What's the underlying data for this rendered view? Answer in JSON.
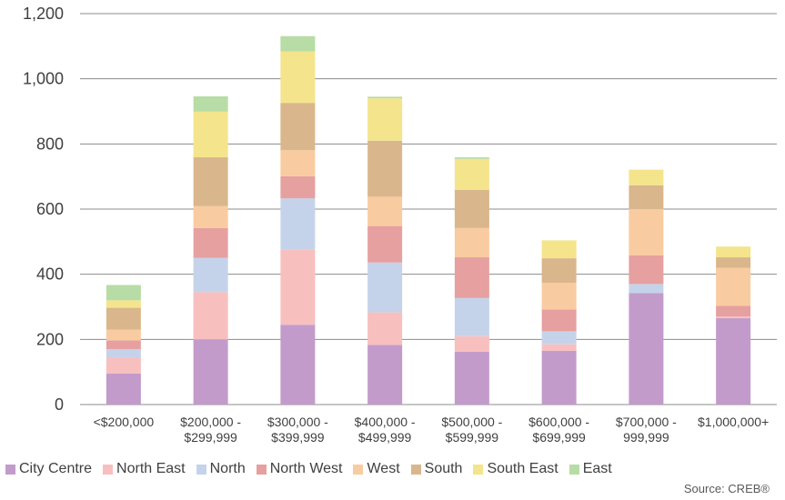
{
  "chart_data": {
    "type": "bar",
    "stacked": true,
    "categories": [
      [
        "<$200,000"
      ],
      [
        "$200,000 -",
        "$299,999"
      ],
      [
        "$300,000 -",
        "$399,999"
      ],
      [
        "$400,000 -",
        "$499,999"
      ],
      [
        "$500,000 -",
        "$599,999"
      ],
      [
        "$600,000 -",
        "$699,999"
      ],
      [
        "$700,000 -",
        "999,999"
      ],
      [
        "$1,000,000+"
      ]
    ],
    "series": [
      {
        "name": "City Centre",
        "color": "#c39bcb",
        "values": [
          95,
          200,
          245,
          183,
          162,
          165,
          342,
          265
        ]
      },
      {
        "name": "North East",
        "color": "#f8bfbf",
        "values": [
          50,
          145,
          230,
          100,
          48,
          20,
          0,
          5
        ]
      },
      {
        "name": "North",
        "color": "#c5d3ea",
        "values": [
          25,
          105,
          158,
          153,
          117,
          40,
          28,
          0
        ]
      },
      {
        "name": "North West",
        "color": "#e6a0a0",
        "values": [
          27,
          92,
          68,
          112,
          125,
          67,
          88,
          33
        ]
      },
      {
        "name": "West",
        "color": "#f9cba0",
        "values": [
          33,
          67,
          80,
          90,
          90,
          82,
          143,
          117
        ]
      },
      {
        "name": "South",
        "color": "#d9b68c",
        "values": [
          67,
          150,
          145,
          172,
          117,
          75,
          72,
          32
        ]
      },
      {
        "name": "South East",
        "color": "#f4e48c",
        "values": [
          23,
          140,
          158,
          130,
          95,
          55,
          48,
          33
        ]
      },
      {
        "name": "East",
        "color": "#b8dca5",
        "values": [
          47,
          47,
          47,
          5,
          5,
          0,
          0,
          0
        ]
      }
    ],
    "y_ticks": [
      "0",
      "200",
      "400",
      "600",
      "800",
      "1,000",
      "1,200"
    ],
    "ylim": [
      0,
      1200
    ],
    "grid": true,
    "legend_position": "bottom",
    "source": "Source: CREB®"
  }
}
